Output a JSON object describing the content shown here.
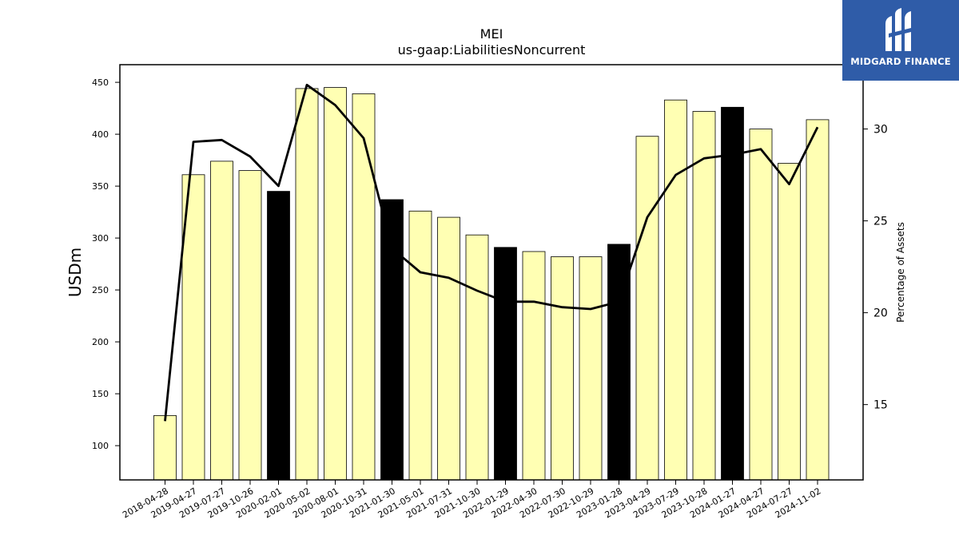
{
  "brand": {
    "name": "MIDGARD FINANCE",
    "bg_color": "#2f5ca8",
    "icon": "midgard-logo-icon"
  },
  "chart_data": {
    "type": "bar",
    "title": "MEI",
    "subtitle": "us-gaap:LiabilitiesNoncurrent",
    "ylabel": "USDm",
    "y2label": "Percentage of Assets",
    "ylim": [
      67,
      467
    ],
    "y2lim": [
      10.9,
      33.5
    ],
    "yticks": [
      100,
      150,
      200,
      250,
      300,
      350,
      400,
      450
    ],
    "y2ticks": [
      15,
      20,
      25,
      30
    ],
    "categories": [
      "2018-04-28",
      "2019-04-27",
      "2019-07-27",
      "2019-10-26",
      "2020-02-01",
      "2020-05-02",
      "2020-08-01",
      "2020-10-31",
      "2021-01-30",
      "2021-05-01",
      "2021-07-31",
      "2021-10-30",
      "2022-01-29",
      "2022-04-30",
      "2022-07-30",
      "2022-10-29",
      "2023-01-28",
      "2023-04-29",
      "2023-07-29",
      "2023-10-28",
      "2024-01-27",
      "2024-04-27",
      "2024-07-27",
      "2024-11-02"
    ],
    "series": [
      {
        "kind": "bar",
        "values": [
          129,
          361,
          374,
          365,
          345,
          444,
          445,
          439,
          337,
          326,
          320,
          303,
          291,
          287,
          282,
          282,
          294,
          398,
          433,
          422,
          426,
          405,
          372,
          414
        ],
        "highlight": [
          false,
          false,
          false,
          false,
          true,
          false,
          false,
          false,
          true,
          false,
          false,
          false,
          true,
          false,
          false,
          false,
          true,
          false,
          false,
          false,
          true,
          false,
          false,
          false
        ]
      },
      {
        "kind": "line",
        "axis": "right",
        "values": [
          14.1,
          29.3,
          29.4,
          28.5,
          26.9,
          32.4,
          31.3,
          29.5,
          23.5,
          22.2,
          21.9,
          21.2,
          20.6,
          20.6,
          20.3,
          20.2,
          20.6,
          25.2,
          27.5,
          28.4,
          28.6,
          28.9,
          27.0,
          30.1
        ]
      }
    ],
    "colors": {
      "bar": "#ffffb3",
      "bar_highlight": "#000000",
      "line": "#000000"
    },
    "grid": false
  }
}
